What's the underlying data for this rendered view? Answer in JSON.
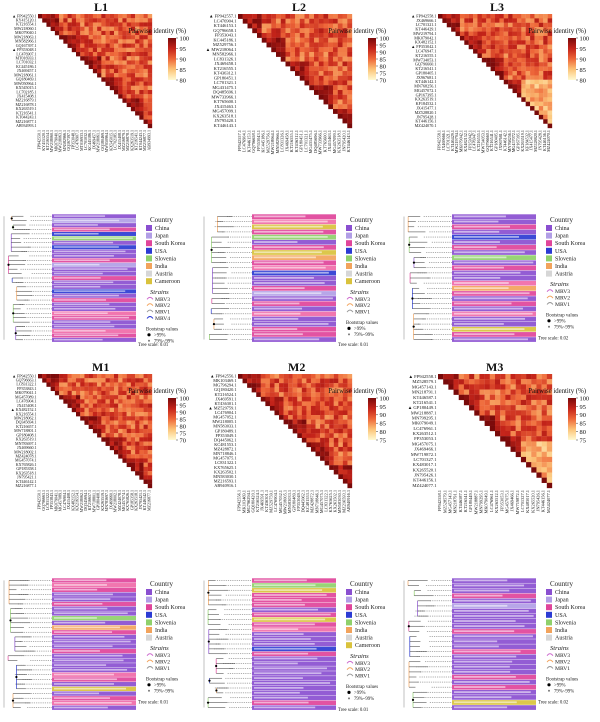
{
  "chart_data": [
    {
      "type": "heatmap",
      "title": "L1",
      "legend_title": "Pairwise identity (%)",
      "scale_range": [
        80,
        100
      ],
      "scale_ticks": [
        "100",
        "95",
        "90",
        "85",
        "80"
      ],
      "row_labels": [
        "FP942550.1",
        "KY415120.1",
        "KT216554.1",
        "MW218060.1",
        "MK079040.1",
        "MW218063.1",
        "MN582966.1",
        "GQ167397.1",
        "FP353048.1",
        "LC476907.1",
        "MT016933.1",
        "LC701032.1",
        "KC445186.1",
        "JX469457.1",
        "MW218061.1",
        "GQ180469.1",
        "MW050964.1",
        "KX545015.1",
        "LC702185.1",
        "JX415408.1",
        "MZ216879.1",
        "MZ216878.1",
        "KX263519.1",
        "KT216541.1",
        "KT044243.1",
        "MZ216877.1",
        "AB934993.1"
      ]
    },
    {
      "type": "heatmap",
      "title": "L2",
      "legend_title": "Pairwise identity (%)",
      "scale_range": [
        70,
        100
      ],
      "scale_ticks": [
        "100",
        "95",
        "90",
        "85",
        "80",
        "75",
        "70"
      ],
      "row_labels": [
        "FP942557.1",
        "LC476904.1",
        "KT446153.1",
        "GQ796658.1",
        "FP353043.1",
        "KC445186.1",
        "MZ529756.1",
        "MW218064.1",
        "MN582966.1",
        "LC831326.1",
        "JX469458.1",
        "KT216555.1",
        "KT436312.1",
        "GP180451.1",
        "LC701321.1",
        "MG431475.1",
        "DQ485696.1",
        "MW733966.1",
        "KT765600.1",
        "JX415463.1",
        "MG457099.1",
        "KX263518.1",
        "JN795420.1",
        "KT446143.1"
      ]
    },
    {
      "type": "heatmap",
      "title": "L3",
      "legend_title": "Pairwise identity (%)",
      "scale_range": [
        80,
        100
      ],
      "scale_ticks": [
        "100",
        "95",
        "90",
        "85",
        "80"
      ],
      "row_labels": [
        "FP942558.1",
        "JX469666.1",
        "LC701321.1",
        "KT446429.1",
        "MW219794.1",
        "MK079042.1",
        "KX482152.1",
        "FP353042.1",
        "LC476947.1",
        "KT216555.1",
        "MW734053.1",
        "GQ796660.1",
        "KT216541.1",
        "GP180405.1",
        "JX967681.1",
        "KT446142.1",
        "MN768256.1",
        "MG457072.1",
        "GP167395.1",
        "KX263519.1",
        "KF184532.1",
        "JX415477.1",
        "MZ528820.1",
        "JN795428.1",
        "KT446156.1",
        "MZ424070.1"
      ]
    },
    {
      "type": "heatmap",
      "title": "M1",
      "legend_title": "Pairwise identity (%)",
      "scale_range": [
        70,
        100
      ],
      "scale_ticks": [
        "100",
        "95",
        "90",
        "85",
        "80",
        "75",
        "70"
      ],
      "row_labels": [
        "FP942550.1",
        "GQ796663.1",
        "LC831322.1",
        "FP353843.1",
        "MK079041.1",
        "MG457089.1",
        "LC476904.1",
        "JX415408.1",
        "KX482152.1",
        "KX216554.1",
        "MW218062.1",
        "DQ345694.1",
        "KT216657.1",
        "MW718801.1",
        "GP180408.1",
        "KX263519.1",
        "MN783697.1",
        "JX469660.1",
        "MW218002.1",
        "MZ424078.1",
        "MG457074.1",
        "KX765826.1",
        "GP185358.1",
        "KX263518.1",
        "JN795421.1",
        "KT446142.1",
        "MZ216877.1"
      ]
    },
    {
      "type": "heatmap",
      "title": "M2",
      "legend_title": "Pairwise identity (%)",
      "scale_range": [
        75,
        100
      ],
      "scale_ticks": [
        "100",
        "95",
        "90",
        "85",
        "80",
        "75"
      ],
      "row_labels": [
        "FP942556.1",
        "MK103469.1",
        "MG796294.1",
        "GQ180420.1",
        "KT216524.1",
        "JX469591.1",
        "KT436301.1",
        "MZ529759.1",
        "LC476904.1",
        "MG457052.1",
        "MW218005.1",
        "MN583033.1",
        "GP180489.1",
        "FP353049.1",
        "DQ445062.1",
        "KC481553.1",
        "MZ428872.1",
        "MN718846.1",
        "MG457075.1",
        "LC831322.1",
        "KX765625.1",
        "KX263502.1",
        "MN583030.1",
        "MZ216593.1",
        "AB940916.1"
      ]
    },
    {
      "type": "heatmap",
      "title": "M3",
      "legend_title": "Pairwise identity (%)",
      "scale_range": [
        75,
        100
      ],
      "scale_ticks": [
        "100",
        "95",
        "90",
        "85",
        "80",
        "75"
      ],
      "row_labels": [
        "FP942558.1",
        "MZ528579.1",
        "MG457143.1",
        "MN218791.1",
        "KT446587.1",
        "KT216541.1",
        "GP180449.1",
        "MW218887.1",
        "MN799295.1",
        "MK079049.1",
        "LC476961.1",
        "KX263512.1",
        "FP353053.1",
        "MG457075.1",
        "JX469466.1",
        "MW719872.1",
        "LC701327.1",
        "KX483017.1",
        "KX265520.1",
        "JN795426.1",
        "KT446156.1",
        "MZ424077.1"
      ]
    },
    {
      "type": "tree",
      "panel": "L1",
      "legend": {
        "country_title": "Country",
        "countries": [
          {
            "name": "China",
            "color": "#8a4fd0"
          },
          {
            "name": "Japan",
            "color": "#b19ee6"
          },
          {
            "name": "South Korea",
            "color": "#e0449a"
          },
          {
            "name": "USA",
            "color": "#2b3bd3"
          },
          {
            "name": "Slovenia",
            "color": "#8fd06a"
          },
          {
            "name": "India",
            "color": "#f2a35c"
          },
          {
            "name": "Austria",
            "color": "#d6d6d6"
          },
          {
            "name": "Cameroon",
            "color": "#d9c23c"
          }
        ],
        "strains_title": "Strains",
        "strains": [
          "MRV3",
          "MRV2",
          "MRV1",
          "MRV4"
        ],
        "bootstrap_title": "Bootstrap values",
        "bootstrap_values": [
          ">99%",
          "79%~99%"
        ],
        "tree_scale": "Tree scale: 0.01"
      },
      "leaf_colors": [
        "#8a4fd0",
        "#b19ee6",
        "#8a4fd0",
        "#e0449a",
        "#2b3bd3",
        "#8fd06a",
        "#8a4fd0",
        "#2b3bd3",
        "#8a4fd0",
        "#8a4fd0",
        "#e0449a",
        "#b19ee6",
        "#8a4fd0",
        "#8a4fd0",
        "#e0449a",
        "#8a4fd0",
        "#8a4fd0",
        "#2b3bd3",
        "#8a4fd0",
        "#e0449a",
        "#8a4fd0",
        "#8a4fd0",
        "#f06aa8",
        "#e0449a",
        "#8a4fd0",
        "#8a4fd0",
        "#f06aa8",
        "#e0449a",
        "#8a4fd0"
      ]
    },
    {
      "type": "tree",
      "panel": "L2",
      "legend": {
        "country_title": "Country",
        "countries": [
          {
            "name": "China",
            "color": "#8a4fd0"
          },
          {
            "name": "Japan",
            "color": "#b19ee6"
          },
          {
            "name": "South Korea",
            "color": "#e0449a"
          },
          {
            "name": "USA",
            "color": "#2b3bd3"
          },
          {
            "name": "Slovenia",
            "color": "#8fd06a"
          },
          {
            "name": "India",
            "color": "#f2a35c"
          },
          {
            "name": "Austria",
            "color": "#d6d6d6"
          },
          {
            "name": "Cameroon",
            "color": "#d9c23c"
          }
        ],
        "strains_title": "Strains",
        "strains": [
          "MRV3",
          "MRV2",
          "MRV1"
        ],
        "bootstrap_title": "Bootstrap values",
        "bootstrap_values": [
          ">99%",
          "79%~99%"
        ],
        "tree_scale": "Tree scale: 0.01"
      },
      "leaf_colors": [
        "#e0449a",
        "#f06aa8",
        "#d9c23c",
        "#e0449a",
        "#8fd06a",
        "#8a4fd0",
        "#e0449a",
        "#d9c23c",
        "#f2a35c",
        "#e0449a",
        "#f06aa8",
        "#2b3bd3",
        "#8a4fd0",
        "#8a4fd0",
        "#e0449a",
        "#b19ee6",
        "#8a4fd0",
        "#e0449a",
        "#8a4fd0",
        "#f06aa8",
        "#8a4fd0",
        "#8a4fd0",
        "#e0449a",
        "#e0449a",
        "#8a4fd0"
      ]
    },
    {
      "type": "tree",
      "panel": "L3",
      "legend": {
        "country_title": "Country",
        "countries": [
          {
            "name": "China",
            "color": "#8a4fd0"
          },
          {
            "name": "Japan",
            "color": "#b19ee6"
          },
          {
            "name": "South Korea",
            "color": "#e0449a"
          },
          {
            "name": "USA",
            "color": "#2b3bd3"
          },
          {
            "name": "Slovenia",
            "color": "#8fd06a"
          },
          {
            "name": "India",
            "color": "#f2a35c"
          },
          {
            "name": "Austria",
            "color": "#d6d6d6"
          }
        ],
        "strains_title": "Strains",
        "strains": [
          "MRV3",
          "MRV2",
          "MRV1"
        ],
        "bootstrap_title": "Bootstrap values",
        "bootstrap_values": [
          ">99%",
          "79%~99%"
        ],
        "tree_scale": "Tree scale: 0.02"
      },
      "leaf_colors": [
        "#8a4fd0",
        "#8a4fd0",
        "#e0449a",
        "#8a4fd0",
        "#2b3bd3",
        "#8a4fd0",
        "#e0449a",
        "#8a4fd0",
        "#8fd06a",
        "#8a4fd0",
        "#e0449a",
        "#8a4fd0",
        "#8a4fd0",
        "#f06aa8",
        "#f2a35c",
        "#e0449a",
        "#8a4fd0",
        "#e0449a",
        "#8a4fd0",
        "#f06aa8",
        "#8a4fd0",
        "#8a4fd0",
        "#d9c23c",
        "#e0449a",
        "#8a4fd0"
      ]
    },
    {
      "type": "tree",
      "panel": "M1",
      "legend": {
        "country_title": "Country",
        "countries": [
          {
            "name": "China",
            "color": "#8a4fd0"
          },
          {
            "name": "Japan",
            "color": "#b19ee6"
          },
          {
            "name": "South Korea",
            "color": "#e0449a"
          },
          {
            "name": "USA",
            "color": "#2b3bd3"
          },
          {
            "name": "Slovenia",
            "color": "#8fd06a"
          },
          {
            "name": "India",
            "color": "#f2a35c"
          },
          {
            "name": "Austria",
            "color": "#d6d6d6"
          }
        ],
        "strains_title": "Strains",
        "strains": [
          "MRV3",
          "MRV2",
          "MRV1"
        ],
        "bootstrap_title": "Bootstrap values",
        "bootstrap_values": [
          ">99%",
          "79%~99%"
        ],
        "tree_scale": "Tree scale: 0.01"
      },
      "leaf_colors": [
        "#e0449a",
        "#f06aa8",
        "#e0449a",
        "#8a4fd0",
        "#8a4fd0",
        "#e0449a",
        "#8a4fd0",
        "#8a4fd0",
        "#8fd06a",
        "#8a4fd0",
        "#f2a35c",
        "#e0449a",
        "#8a4fd0",
        "#8a4fd0",
        "#8a4fd0",
        "#e0449a",
        "#8a4fd0",
        "#8a4fd0",
        "#8a4fd0",
        "#8a4fd0",
        "#f06aa8",
        "#e0449a",
        "#8a4fd0",
        "#d9c23c",
        "#8a4fd0",
        "#e0449a",
        "#f06aa8",
        "#8a4fd0"
      ]
    },
    {
      "type": "tree",
      "panel": "M2",
      "legend": {
        "country_title": "Country",
        "countries": [
          {
            "name": "China",
            "color": "#8a4fd0"
          },
          {
            "name": "Japan",
            "color": "#b19ee6"
          },
          {
            "name": "South Korea",
            "color": "#e0449a"
          },
          {
            "name": "USA",
            "color": "#2b3bd3"
          },
          {
            "name": "Slovenia",
            "color": "#8fd06a"
          },
          {
            "name": "India",
            "color": "#f2a35c"
          },
          {
            "name": "Austria",
            "color": "#d6d6d6"
          },
          {
            "name": "Cameroon",
            "color": "#d9c23c"
          }
        ],
        "strains_title": "Strains",
        "strains": [
          "MRV3",
          "MRV2",
          "MRV1"
        ],
        "bootstrap_title": "Bootstrap values",
        "bootstrap_values": [
          ">99%",
          "79%~99%"
        ],
        "tree_scale": "Tree scale: 0.01"
      },
      "leaf_colors": [
        "#e0449a",
        "#8fd06a",
        "#d9c23c",
        "#e0449a",
        "#e0449a",
        "#e0449a",
        "#8a4fd0",
        "#e0449a",
        "#d9c23c",
        "#e0449a",
        "#f06aa8",
        "#8a4fd0",
        "#8a4fd0",
        "#8a4fd0",
        "#2b3bd3",
        "#e0449a",
        "#8a4fd0",
        "#8a4fd0",
        "#8a4fd0",
        "#8a4fd0",
        "#8a4fd0",
        "#8a4fd0",
        "#8a4fd0",
        "#8a4fd0",
        "#8a4fd0",
        "#e0449a",
        "#8a4fd0"
      ]
    },
    {
      "type": "tree",
      "panel": "M3",
      "legend": {
        "country_title": "Country",
        "countries": [
          {
            "name": "China",
            "color": "#8a4fd0"
          },
          {
            "name": "Japan",
            "color": "#b19ee6"
          },
          {
            "name": "South Korea",
            "color": "#e0449a"
          },
          {
            "name": "USA",
            "color": "#2b3bd3"
          },
          {
            "name": "Slovenia",
            "color": "#8fd06a"
          },
          {
            "name": "India",
            "color": "#f2a35c"
          },
          {
            "name": "Austria",
            "color": "#d6d6d6"
          }
        ],
        "strains_title": "Strains",
        "strains": [
          "MRV3",
          "MRV2",
          "MRV1"
        ],
        "bootstrap_title": "Bootstrap values",
        "bootstrap_values": [
          ">99%",
          "79%~99%"
        ],
        "tree_scale": "Tree scale: 0.02"
      },
      "leaf_colors": [
        "#8a4fd0",
        "#8a4fd0",
        "#8a4fd0",
        "#e0449a",
        "#8a4fd0",
        "#b19ee6",
        "#8a4fd0",
        "#8a4fd0",
        "#8a4fd0",
        "#8a4fd0",
        "#e0449a",
        "#8a4fd0",
        "#8a4fd0",
        "#8a4fd0",
        "#e0449a",
        "#8a4fd0",
        "#8a4fd0",
        "#8a4fd0",
        "#8a4fd0",
        "#e0449a",
        "#8a4fd0",
        "#e0449a",
        "#8a4fd0",
        "#8a4fd0",
        "#d9c23c",
        "#8a4fd0"
      ]
    }
  ]
}
